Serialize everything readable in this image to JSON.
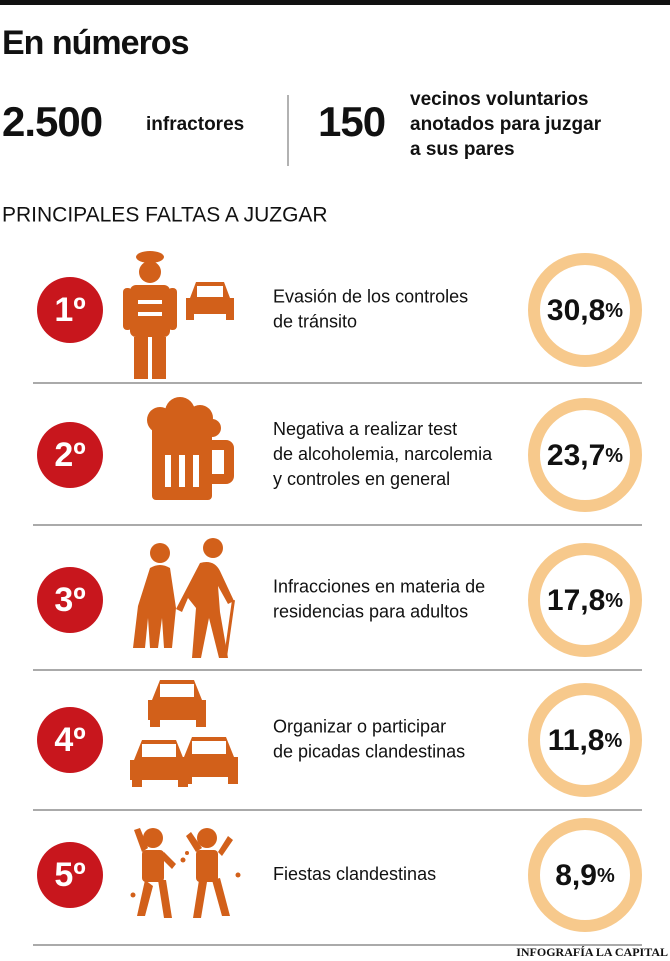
{
  "header": {
    "title": "En números"
  },
  "stats": [
    {
      "number": "2.500",
      "lines": [
        "infractores"
      ]
    },
    {
      "number": "150",
      "lines": [
        "vecinos voluntarios",
        "anotados para juzgar",
        "a sus pares"
      ]
    }
  ],
  "section_title": "PRINCIPALES FALTAS A JUZGAR",
  "items": [
    {
      "rank": "1º",
      "lines": [
        "Evasión de los controles",
        "de tránsito"
      ],
      "value": "30,8",
      "unit": "%"
    },
    {
      "rank": "2º",
      "lines": [
        "Negativa a realizar test",
        "de alcoholemia, narcolemia",
        "y controles en general"
      ],
      "value": "23,7",
      "unit": "%"
    },
    {
      "rank": "3º",
      "lines": [
        "Infracciones en materia de",
        "residencias para adultos"
      ],
      "value": "17,8",
      "unit": "%"
    },
    {
      "rank": "4º",
      "lines": [
        "Organizar o participar",
        "de picadas clandestinas"
      ],
      "value": "11,8",
      "unit": "%"
    },
    {
      "rank": "5º",
      "lines": [
        "Fiestas clandestinas"
      ],
      "value": "8,9",
      "unit": "%"
    }
  ],
  "footer": "INFOGRAFÍA LA CAPITAL"
}
